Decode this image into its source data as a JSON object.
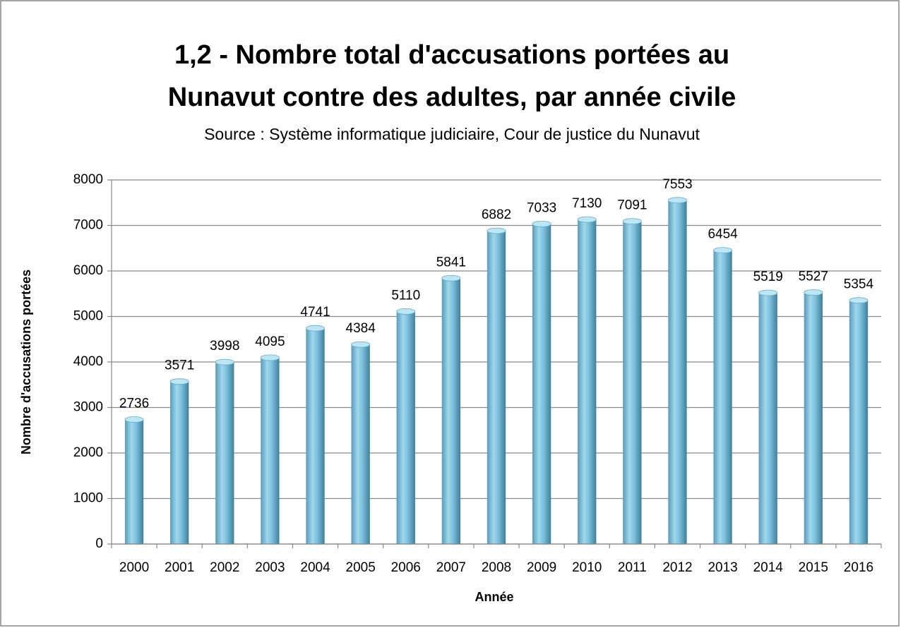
{
  "chart_data": {
    "type": "bar",
    "title": [
      "1,2 - Nombre total d'accusations portées au",
      "Nunavut contre des adultes, par année civile"
    ],
    "subtitle": "Source : Système informatique judiciaire, Cour de justice du Nunavut",
    "x_label": "Année",
    "y_label": "Nombre d'accusations portées",
    "categories": [
      "2000",
      "2001",
      "2002",
      "2003",
      "2004",
      "2005",
      "2006",
      "2007",
      "2008",
      "2009",
      "2010",
      "2011",
      "2012",
      "2013",
      "2014",
      "2015",
      "2016"
    ],
    "values": [
      2736,
      3571,
      3998,
      4095,
      4741,
      4384,
      5110,
      5841,
      6882,
      7033,
      7130,
      7091,
      7553,
      6454,
      5519,
      5527,
      5354
    ],
    "color": "#7ec4e0",
    "ylim": [
      0,
      8000
    ],
    "yticks": [
      0,
      1000,
      2000,
      3000,
      4000,
      5000,
      6000,
      7000,
      8000
    ],
    "grid": true
  }
}
